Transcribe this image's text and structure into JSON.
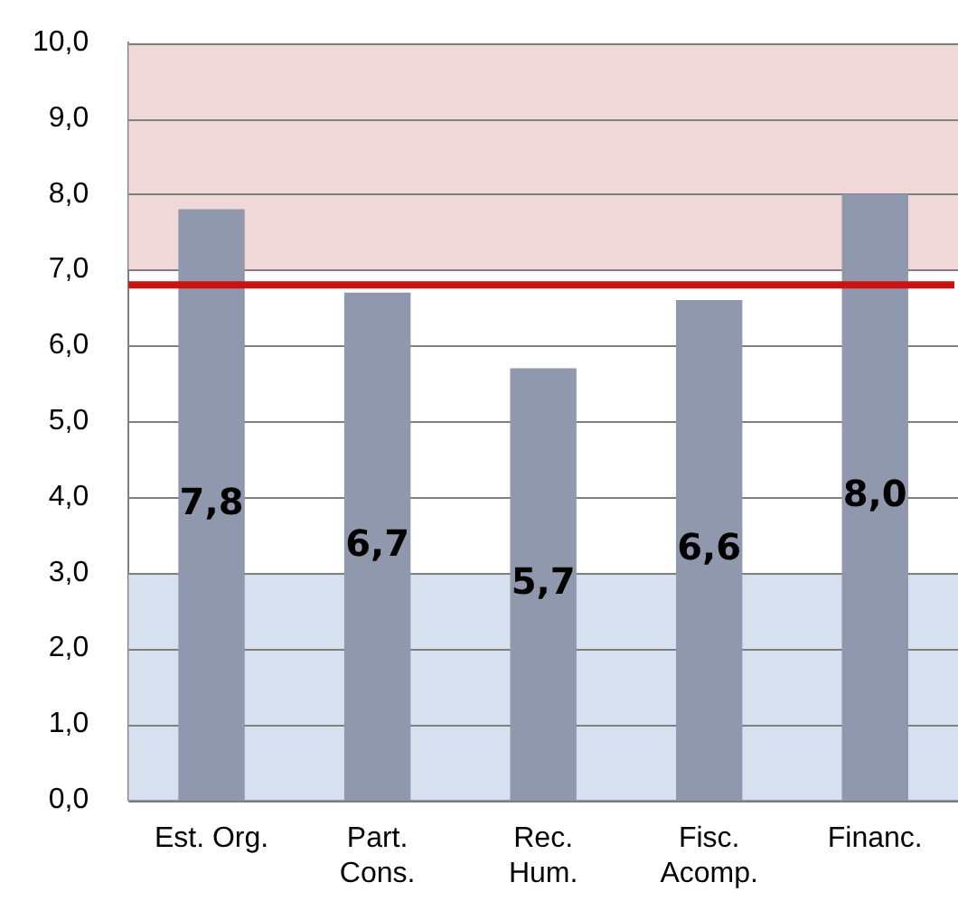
{
  "chart_data": {
    "type": "bar",
    "categories": [
      "Est. Org.",
      "Part.\nCons.",
      "Rec.\nHum.",
      "Fisc.\nAcomp.",
      "Financ."
    ],
    "values": [
      7.8,
      6.7,
      5.7,
      6.6,
      8.0
    ],
    "value_labels": [
      "7,8",
      "6,7",
      "5,7",
      "6,6",
      "8,0"
    ],
    "color": "#8f98ac",
    "ylim": [
      0,
      10
    ],
    "yticks": [
      {
        "value": 0,
        "label": "0,0"
      },
      {
        "value": 1,
        "label": "1,0"
      },
      {
        "value": 2,
        "label": "2,0"
      },
      {
        "value": 3,
        "label": "3,0"
      },
      {
        "value": 4,
        "label": "4,0"
      },
      {
        "value": 5,
        "label": "5,0"
      },
      {
        "value": 6,
        "label": "6,0"
      },
      {
        "value": 7,
        "label": "7,0"
      },
      {
        "value": 8,
        "label": "8,0"
      },
      {
        "value": 9,
        "label": "9,0"
      },
      {
        "value": 10,
        "label": "10,0"
      }
    ],
    "grid": "y",
    "ref_lines": [
      {
        "axis": "y",
        "value": 6.8,
        "color": "#cc1111"
      }
    ],
    "bands": [
      {
        "axis": "y",
        "from": 7,
        "to": 10,
        "color": "#f0d8d8"
      },
      {
        "axis": "y",
        "from": 0,
        "to": 3,
        "color": "#d6e0ee"
      }
    ]
  }
}
